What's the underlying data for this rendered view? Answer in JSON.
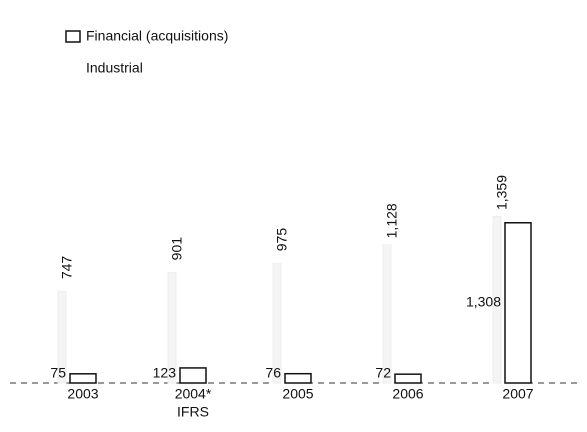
{
  "chart_data": {
    "type": "bar",
    "categories": [
      "2003",
      "2004*",
      "2005",
      "2006",
      "2007"
    ],
    "annotations": [
      {
        "text": "IFRS",
        "category": 1
      }
    ],
    "series": [
      {
        "name": "Financial (acquisitions)",
        "color": "#ffffff",
        "values": [
          75,
          123,
          76,
          72,
          1308
        ]
      },
      {
        "name": "Industrial",
        "color": "#f4f4f4",
        "values": [
          747,
          901,
          975,
          1128,
          1359
        ],
        "value_labels": [
          "747",
          "901",
          "975",
          "1,128",
          "1,359"
        ]
      }
    ],
    "financial_value_labels": [
      "75",
      "123",
      "76",
      "72",
      "1,308"
    ],
    "ylim": [
      0,
      2800
    ]
  }
}
